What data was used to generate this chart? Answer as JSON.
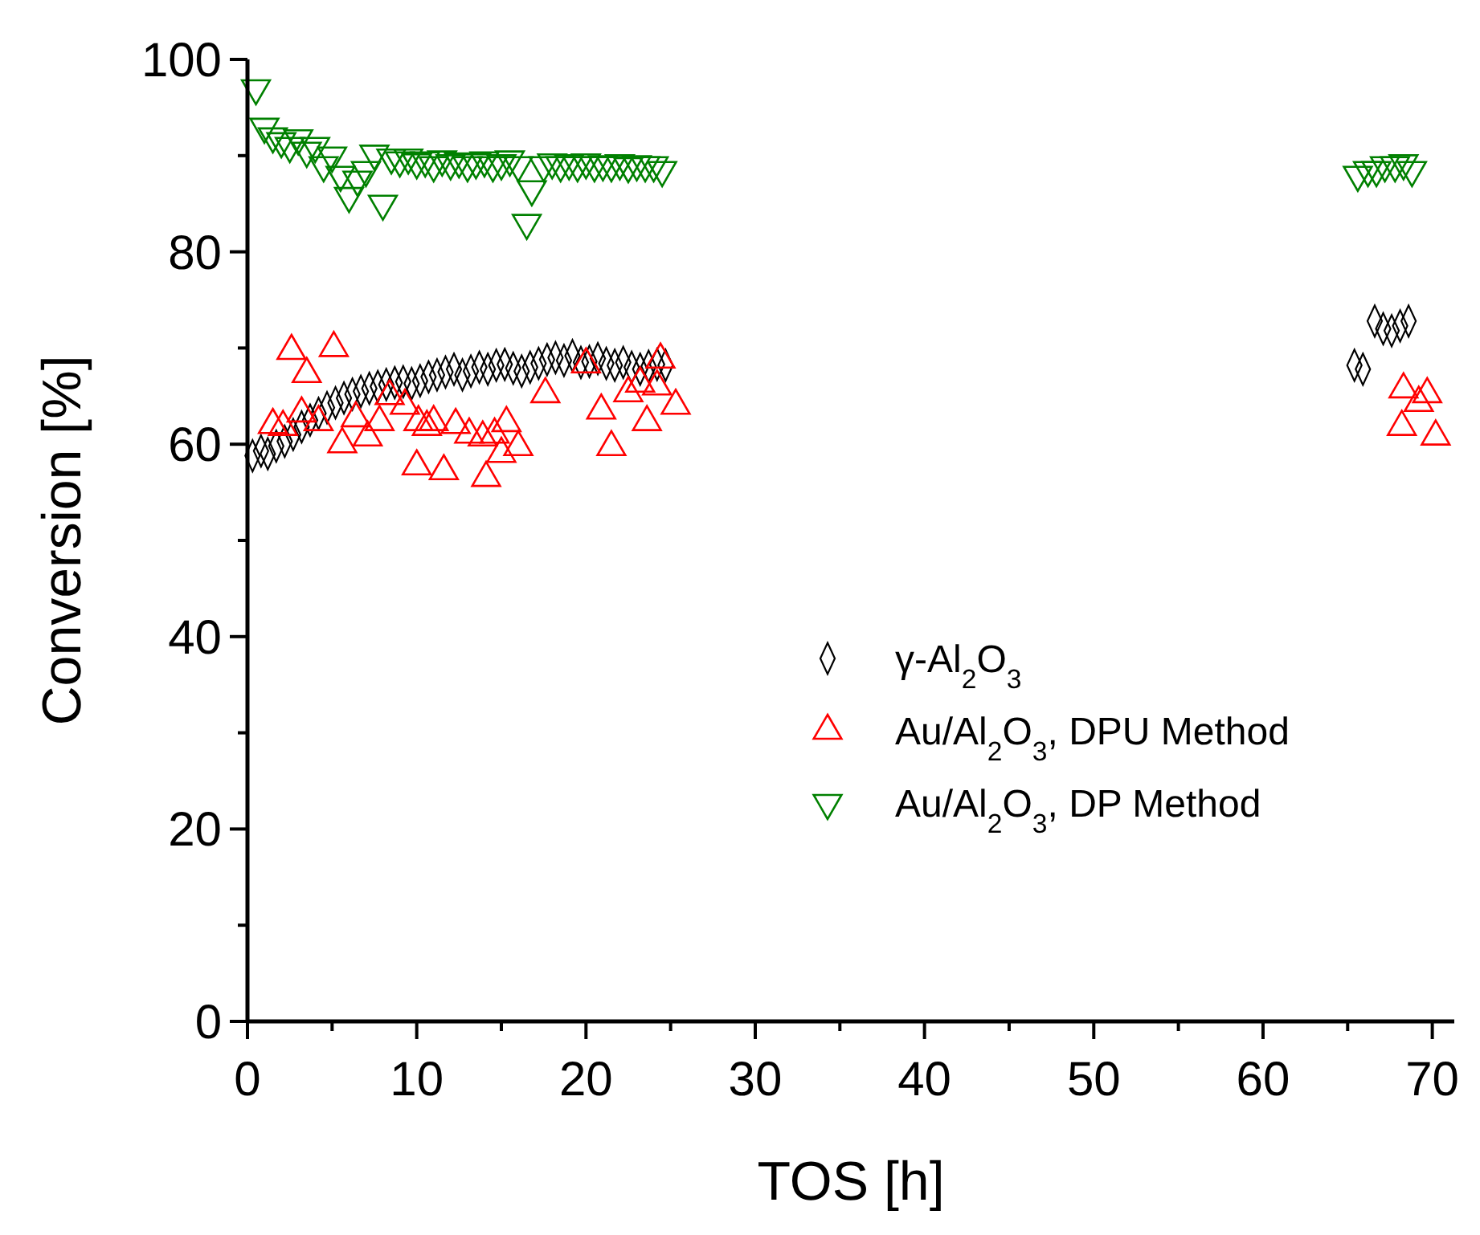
{
  "chart_data": {
    "type": "scatter",
    "xlabel": "TOS [h]",
    "ylabel": "Conversion  [%]",
    "xlim": [
      0,
      71.3
    ],
    "ylim": [
      0,
      100
    ],
    "xticks": [
      0,
      {
        "value": 5,
        "label": null
      },
      10,
      {
        "value": 15,
        "label": null
      },
      20,
      {
        "value": 25,
        "label": null
      },
      30,
      {
        "value": 35,
        "label": null
      },
      40,
      {
        "value": 45,
        "label": null
      },
      50,
      {
        "value": 55,
        "label": null
      },
      60,
      {
        "value": 65,
        "label": null
      },
      70
    ],
    "yticks": [
      0,
      {
        "value": 10,
        "label": null
      },
      20,
      {
        "value": 30,
        "label": null
      },
      40,
      {
        "value": 50,
        "label": null
      },
      60,
      {
        "value": 70,
        "label": null
      },
      80,
      {
        "value": 90,
        "label": null
      },
      100
    ],
    "grid": false,
    "legend": "right",
    "series": [
      {
        "name": "γ-Al$_{2}$O$_{3}$",
        "color": "#000000",
        "marker": "diamond",
        "x": [
          0.3,
          0.8,
          1.2,
          1.7,
          2.2,
          2.7,
          3.2,
          3.7,
          4.2,
          4.7,
          5.2,
          5.7,
          6.2,
          6.7,
          7.2,
          7.7,
          8.2,
          8.7,
          9.2,
          9.7,
          10.2,
          10.7,
          11.2,
          11.7,
          12.2,
          12.7,
          13.2,
          13.7,
          14.2,
          14.7,
          15.2,
          15.7,
          16.2,
          16.7,
          17.2,
          17.7,
          18.2,
          18.7,
          19.2,
          19.7,
          20.2,
          20.7,
          21.2,
          21.7,
          22.2,
          22.7,
          23.2,
          23.7,
          24.2,
          24.7,
          65.4,
          65.9,
          66.6,
          67.1,
          67.6,
          68.1,
          68.6
        ],
        "values": [
          58.8,
          59.3,
          59.0,
          59.8,
          60.3,
          61.0,
          61.8,
          62.5,
          63.2,
          63.8,
          64.3,
          64.8,
          65.2,
          65.5,
          65.8,
          66.0,
          66.2,
          66.4,
          66.5,
          66.3,
          66.6,
          67.0,
          67.2,
          67.5,
          67.8,
          67.2,
          67.6,
          68.0,
          67.8,
          68.2,
          68.3,
          67.9,
          67.6,
          68.0,
          68.4,
          68.8,
          69.0,
          68.7,
          69.2,
          68.5,
          68.6,
          68.9,
          68.4,
          68.2,
          68.5,
          68.0,
          67.8,
          68.1,
          68.3,
          68.2,
          68.2,
          67.8,
          72.8,
          72.0,
          71.8,
          72.3,
          72.8
        ]
      },
      {
        "name": "Au/Al$_{2}$O$_{3}$, DPU Method",
        "color": "#ff0000",
        "marker": "triangle",
        "x": [
          1.5,
          2.1,
          2.6,
          3.2,
          3.5,
          4.2,
          5.1,
          5.6,
          6.4,
          7.1,
          7.8,
          8.4,
          9.3,
          10.0,
          10.1,
          10.6,
          11.0,
          11.6,
          12.3,
          13.1,
          13.9,
          14.1,
          14.6,
          15.0,
          15.3,
          16.0,
          17.6,
          20.0,
          20.9,
          21.5,
          22.5,
          23.2,
          23.6,
          24.2,
          24.4,
          25.3,
          68.2,
          68.3,
          69.2,
          69.7,
          70.2
        ],
        "values": [
          62.0,
          61.8,
          69.7,
          63.2,
          67.3,
          62.3,
          70.0,
          60.0,
          62.7,
          60.7,
          62.3,
          65.0,
          64.0,
          57.7,
          62.3,
          61.8,
          62.3,
          57.2,
          62.0,
          61.0,
          60.7,
          56.5,
          61.0,
          59.0,
          62.2,
          59.7,
          65.2,
          68.3,
          63.5,
          59.7,
          65.3,
          66.3,
          62.3,
          66.0,
          68.8,
          64.0,
          61.8,
          65.7,
          64.3,
          65.2,
          60.8
        ]
      },
      {
        "name": "Au/Al$_{2}$O$_{3}$, DP Method",
        "color": "#008000",
        "marker": "triangle-down",
        "x": [
          0.5,
          1.0,
          1.5,
          2.0,
          2.5,
          3.0,
          3.5,
          4.0,
          4.5,
          5.0,
          5.5,
          6.0,
          6.5,
          7.0,
          7.5,
          8.0,
          8.5,
          9.0,
          9.5,
          10.0,
          10.5,
          11.0,
          11.5,
          12.0,
          12.5,
          13.0,
          13.5,
          14.0,
          14.5,
          15.0,
          15.5,
          16.0,
          16.5,
          16.8,
          17.5,
          18.0,
          18.5,
          19.0,
          19.5,
          20.0,
          20.5,
          21.0,
          21.5,
          22.0,
          22.5,
          23.0,
          23.5,
          24.0,
          24.5,
          65.6,
          66.2,
          66.7,
          67.2,
          67.8,
          68.3,
          68.8
        ],
        "values": [
          97.0,
          93.0,
          92.0,
          91.5,
          91.0,
          91.8,
          90.5,
          91.0,
          89.0,
          90.0,
          88.0,
          85.8,
          87.5,
          88.5,
          90.2,
          85.0,
          89.8,
          89.5,
          89.8,
          89.3,
          89.5,
          89.0,
          89.6,
          89.2,
          89.4,
          89.0,
          89.3,
          89.5,
          89.0,
          89.2,
          89.6,
          89.0,
          83.0,
          86.5,
          89.0,
          89.3,
          89.0,
          89.2,
          89.0,
          89.3,
          89.0,
          89.1,
          89.0,
          89.2,
          88.9,
          89.1,
          89.0,
          89.0,
          88.5,
          88.0,
          88.5,
          88.5,
          89.0,
          89.0,
          89.2,
          88.5
        ]
      }
    ]
  }
}
